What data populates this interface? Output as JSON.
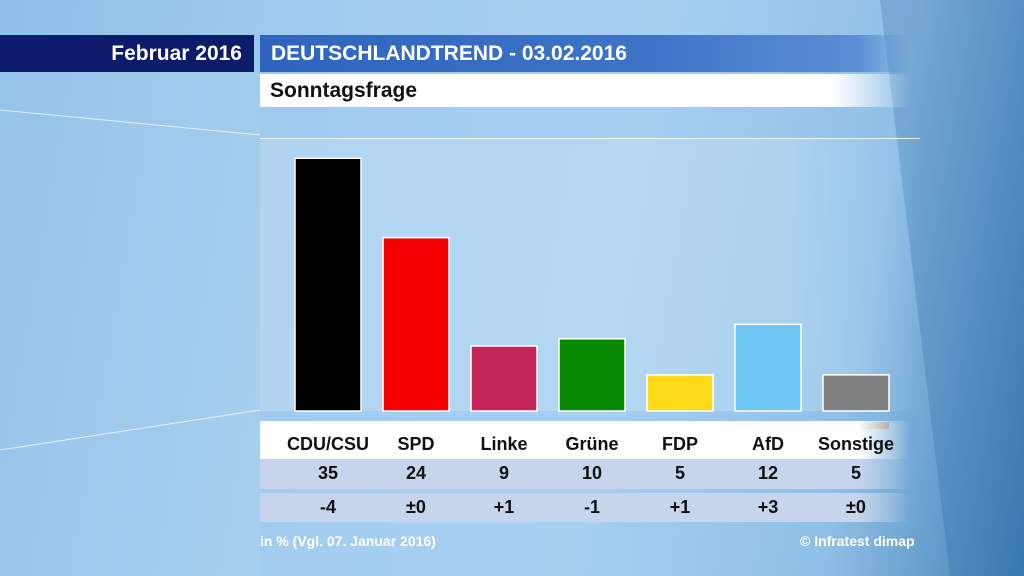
{
  "header": {
    "date_label": "Februar 2016",
    "title": "DEUTSCHLANDTREND - 03.02.2016",
    "subtitle": "Sonntagsfrage"
  },
  "chart_data": {
    "type": "bar",
    "title": "Sonntagsfrage",
    "categories": [
      "CDU/CSU",
      "SPD",
      "Linke",
      "Grüne",
      "FDP",
      "AfD",
      "Sonstige"
    ],
    "values": [
      35,
      24,
      9,
      10,
      5,
      12,
      5
    ],
    "value_labels": [
      "35",
      "24",
      "9",
      "10",
      "5",
      "12",
      "5"
    ],
    "changes": [
      "-4",
      "±0",
      "+1",
      "-1",
      "+1",
      "+3",
      "±0"
    ],
    "colors": [
      "#000000",
      "#f50000",
      "#c2245a",
      "#088a00",
      "#fcd919",
      "#6ec6f5",
      "#808080"
    ],
    "ylim": [
      0,
      36
    ],
    "grid": false,
    "unit_note": "in % (Vgl. 07. Januar 2016)"
  },
  "footer": {
    "note": "in % (Vgl. 07. Januar 2016)",
    "source": "© Infratest dimap"
  }
}
